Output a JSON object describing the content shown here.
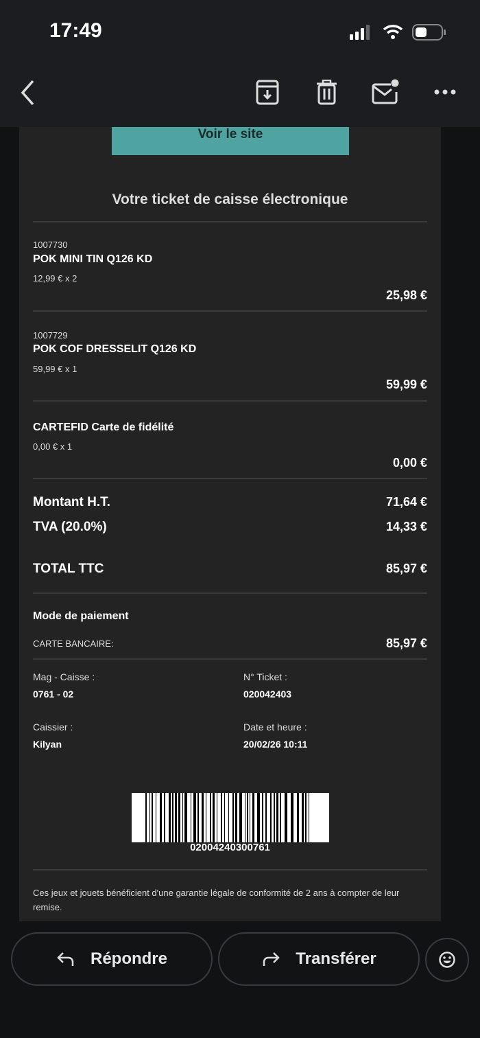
{
  "status_bar": {
    "time": "17:49"
  },
  "toolbar": {
    "icons": [
      "back-icon",
      "archive-icon",
      "trash-icon",
      "mark-unread-icon",
      "more-icon"
    ]
  },
  "email": {
    "site_button": "Voir le site",
    "title": "Votre ticket de caisse électronique",
    "items": [
      {
        "code": "1007730",
        "name": "POK MINI TIN Q126 KD",
        "unit": "12,99 € x 2",
        "total": "25,98 €"
      },
      {
        "code": "1007729",
        "name": "POK COF DRESSELIT Q126 KD",
        "unit": "59,99 € x 1",
        "total": "59,99 €"
      },
      {
        "code": "",
        "name": "CARTEFID Carte de fidélité",
        "unit": "0,00 € x 1",
        "total": "0,00 €"
      }
    ],
    "totals": {
      "ht_label": "Montant H.T.",
      "ht_value": "71,64 €",
      "tva_label": "TVA (20.0%)",
      "tva_value": "14,33 €",
      "ttc_label": "TOTAL TTC",
      "ttc_value": "85,97 €"
    },
    "payment": {
      "heading": "Mode de paiement",
      "method": "CARTE BANCAIRE:",
      "amount": "85,97 €"
    },
    "info": {
      "store_label": "Mag - Caisse :",
      "store_value": "0761 - 02",
      "ticket_label": "N° Ticket :",
      "ticket_value": "020042403",
      "cashier_label": "Caissier :",
      "cashier_value": "Kilyan",
      "date_label": "Date et heure :",
      "date_value": "20/02/26 10:11"
    },
    "barcode": "02004240300761",
    "footer": "Ces jeux et jouets bénéficient d'une garantie légale de conformité de 2 ans à compter de leur remise."
  },
  "actions": {
    "reply": "Répondre",
    "forward": "Transférer"
  },
  "colors": {
    "accent": "#4fa3a0",
    "background": "#111214",
    "card": "#232323"
  }
}
